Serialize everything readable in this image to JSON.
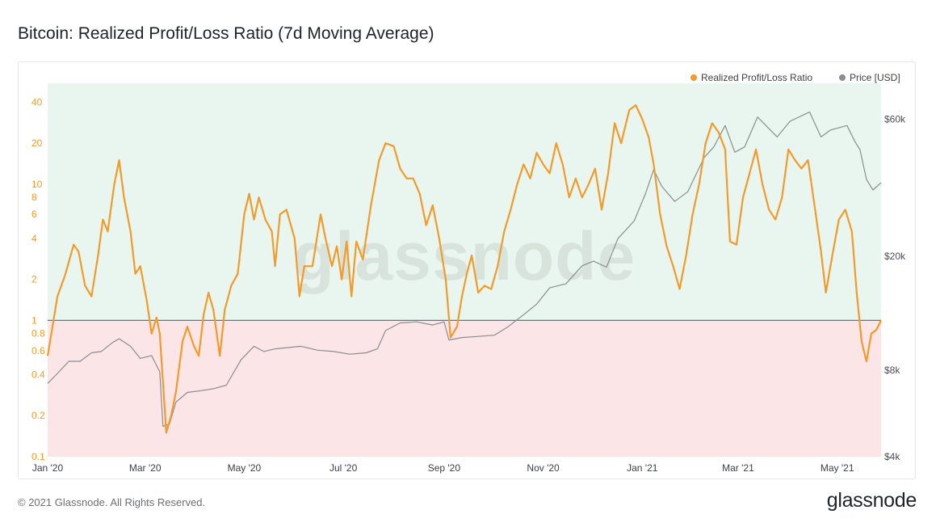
{
  "title": "Bitcoin: Realized Profit/Loss Ratio (7d Moving Average)",
  "footer": "© 2021 Glassnode. All Rights Reserved.",
  "logo": "glassnode",
  "watermark": "glassnode",
  "colors": {
    "ratio": "#f39a2a",
    "price": "#8a8d92",
    "profit_zone": "#e9f6ef",
    "loss_zone": "#fbe5e7",
    "baseline": "#6f7378"
  },
  "chart_data": {
    "type": "line",
    "title": "Bitcoin: Realized Profit/Loss Ratio (7d Moving Average)",
    "x_range": [
      "2020-01-01",
      "2021-05-28"
    ],
    "x_ticks": [
      {
        "date": "2020-01-01",
        "label": "Jan '20"
      },
      {
        "date": "2020-03-01",
        "label": "Mar '20"
      },
      {
        "date": "2020-05-01",
        "label": "May '20"
      },
      {
        "date": "2020-07-01",
        "label": "Jul '20"
      },
      {
        "date": "2020-09-01",
        "label": "Sep '20"
      },
      {
        "date": "2020-11-01",
        "label": "Nov '20"
      },
      {
        "date": "2021-01-01",
        "label": "Jan '21"
      },
      {
        "date": "2021-03-01",
        "label": "Mar '21"
      },
      {
        "date": "2021-05-01",
        "label": "May '21"
      }
    ],
    "y_left": {
      "scale": "log",
      "range": [
        0.1,
        55
      ],
      "ticks": [
        {
          "value": 0.1,
          "label": "0.1"
        },
        {
          "value": 0.2,
          "label": "0.2"
        },
        {
          "value": 0.4,
          "label": "0.4"
        },
        {
          "value": 0.6,
          "label": "0.6"
        },
        {
          "value": 0.8,
          "label": "0.8"
        },
        {
          "value": 1,
          "label": "1"
        },
        {
          "value": 2,
          "label": "2"
        },
        {
          "value": 4,
          "label": "4"
        },
        {
          "value": 6,
          "label": "6"
        },
        {
          "value": 8,
          "label": "8"
        },
        {
          "value": 10,
          "label": "10"
        },
        {
          "value": 20,
          "label": "20"
        },
        {
          "value": 40,
          "label": "40"
        }
      ]
    },
    "y_right": {
      "scale": "log",
      "range": [
        4000,
        80000
      ],
      "ticks": [
        {
          "value": 4000,
          "label": "$4k"
        },
        {
          "value": 8000,
          "label": "$8k"
        },
        {
          "value": 20000,
          "label": "$20k"
        },
        {
          "value": 60000,
          "label": "$60k"
        }
      ]
    },
    "threshold": 1,
    "legend_position": "top-right",
    "grid": false,
    "series": [
      {
        "name": "Realized Profit/Loss Ratio",
        "axis": "left",
        "points": [
          [
            "2020-01-01",
            0.55
          ],
          [
            "2020-01-04",
            0.9
          ],
          [
            "2020-01-07",
            1.5
          ],
          [
            "2020-01-12",
            2.2
          ],
          [
            "2020-01-17",
            3.6
          ],
          [
            "2020-01-20",
            3.2
          ],
          [
            "2020-01-24",
            1.8
          ],
          [
            "2020-01-28",
            1.5
          ],
          [
            "2020-02-01",
            3.0
          ],
          [
            "2020-02-04",
            5.5
          ],
          [
            "2020-02-07",
            4.5
          ],
          [
            "2020-02-11",
            10.0
          ],
          [
            "2020-02-14",
            15.0
          ],
          [
            "2020-02-17",
            8.0
          ],
          [
            "2020-02-21",
            4.5
          ],
          [
            "2020-02-24",
            2.2
          ],
          [
            "2020-02-27",
            2.5
          ],
          [
            "2020-03-02",
            1.4
          ],
          [
            "2020-03-05",
            0.8
          ],
          [
            "2020-03-08",
            1.05
          ],
          [
            "2020-03-10",
            0.8
          ],
          [
            "2020-03-12",
            0.35
          ],
          [
            "2020-03-14",
            0.15
          ],
          [
            "2020-03-17",
            0.2
          ],
          [
            "2020-03-20",
            0.3
          ],
          [
            "2020-03-24",
            0.7
          ],
          [
            "2020-03-27",
            0.9
          ],
          [
            "2020-03-31",
            0.65
          ],
          [
            "2020-04-03",
            0.55
          ],
          [
            "2020-04-06",
            1.1
          ],
          [
            "2020-04-09",
            1.6
          ],
          [
            "2020-04-12",
            1.2
          ],
          [
            "2020-04-16",
            0.55
          ],
          [
            "2020-04-19",
            1.2
          ],
          [
            "2020-04-23",
            1.8
          ],
          [
            "2020-04-27",
            2.2
          ],
          [
            "2020-05-01",
            6.0
          ],
          [
            "2020-05-04",
            8.5
          ],
          [
            "2020-05-07",
            5.5
          ],
          [
            "2020-05-10",
            8.0
          ],
          [
            "2020-05-14",
            5.5
          ],
          [
            "2020-05-18",
            4.5
          ],
          [
            "2020-05-20",
            2.5
          ],
          [
            "2020-05-23",
            6.0
          ],
          [
            "2020-05-27",
            6.5
          ],
          [
            "2020-06-01",
            4.0
          ],
          [
            "2020-06-04",
            1.5
          ],
          [
            "2020-06-07",
            2.5
          ],
          [
            "2020-06-12",
            2.5
          ],
          [
            "2020-06-17",
            6.0
          ],
          [
            "2020-06-20",
            4.0
          ],
          [
            "2020-06-24",
            2.5
          ],
          [
            "2020-06-27",
            3.5
          ],
          [
            "2020-06-30",
            2.0
          ],
          [
            "2020-07-03",
            3.8
          ],
          [
            "2020-07-06",
            1.5
          ],
          [
            "2020-07-09",
            3.8
          ],
          [
            "2020-07-13",
            2.8
          ],
          [
            "2020-07-18",
            7.0
          ],
          [
            "2020-07-23",
            15.0
          ],
          [
            "2020-07-27",
            20.0
          ],
          [
            "2020-08-01",
            19.0
          ],
          [
            "2020-08-05",
            13.0
          ],
          [
            "2020-08-09",
            11.0
          ],
          [
            "2020-08-13",
            11.0
          ],
          [
            "2020-08-17",
            8.5
          ],
          [
            "2020-08-21",
            5.0
          ],
          [
            "2020-08-25",
            7.0
          ],
          [
            "2020-08-29",
            4.0
          ],
          [
            "2020-09-02",
            2.0
          ],
          [
            "2020-09-05",
            0.75
          ],
          [
            "2020-09-09",
            0.9
          ],
          [
            "2020-09-12",
            1.5
          ],
          [
            "2020-09-15",
            2.2
          ],
          [
            "2020-09-18",
            3.0
          ],
          [
            "2020-09-22",
            1.6
          ],
          [
            "2020-09-26",
            1.8
          ],
          [
            "2020-09-30",
            1.7
          ],
          [
            "2020-10-04",
            2.5
          ],
          [
            "2020-10-08",
            4.5
          ],
          [
            "2020-10-12",
            6.5
          ],
          [
            "2020-10-16",
            10.0
          ],
          [
            "2020-10-20",
            14.0
          ],
          [
            "2020-10-24",
            11.0
          ],
          [
            "2020-10-28",
            17.0
          ],
          [
            "2020-11-01",
            14.0
          ],
          [
            "2020-11-05",
            12.0
          ],
          [
            "2020-11-09",
            20.0
          ],
          [
            "2020-11-13",
            14.0
          ],
          [
            "2020-11-17",
            8.0
          ],
          [
            "2020-11-21",
            11.0
          ],
          [
            "2020-11-25",
            8.0
          ],
          [
            "2020-11-29",
            10.0
          ],
          [
            "2020-12-03",
            13.0
          ],
          [
            "2020-12-07",
            6.5
          ],
          [
            "2020-12-11",
            12.0
          ],
          [
            "2020-12-15",
            28.0
          ],
          [
            "2020-12-19",
            20.0
          ],
          [
            "2020-12-24",
            35.0
          ],
          [
            "2020-12-28",
            38.0
          ],
          [
            "2021-01-01",
            30.0
          ],
          [
            "2021-01-05",
            22.0
          ],
          [
            "2021-01-08",
            14.0
          ],
          [
            "2021-01-12",
            6.0
          ],
          [
            "2021-01-16",
            3.5
          ],
          [
            "2021-01-20",
            2.5
          ],
          [
            "2021-01-24",
            1.7
          ],
          [
            "2021-01-28",
            3.0
          ],
          [
            "2021-02-01",
            6.0
          ],
          [
            "2021-02-05",
            10.0
          ],
          [
            "2021-02-09",
            20.0
          ],
          [
            "2021-02-13",
            28.0
          ],
          [
            "2021-02-17",
            24.0
          ],
          [
            "2021-02-21",
            18.0
          ],
          [
            "2021-02-24",
            3.8
          ],
          [
            "2021-02-28",
            3.6
          ],
          [
            "2021-03-04",
            8.0
          ],
          [
            "2021-03-08",
            12.0
          ],
          [
            "2021-03-12",
            18.0
          ],
          [
            "2021-03-16",
            10.0
          ],
          [
            "2021-03-20",
            6.5
          ],
          [
            "2021-03-24",
            5.5
          ],
          [
            "2021-03-28",
            8.0
          ],
          [
            "2021-04-01",
            18.0
          ],
          [
            "2021-04-05",
            15.0
          ],
          [
            "2021-04-09",
            13.0
          ],
          [
            "2021-04-13",
            15.0
          ],
          [
            "2021-04-17",
            7.0
          ],
          [
            "2021-04-21",
            3.2
          ],
          [
            "2021-04-24",
            1.6
          ],
          [
            "2021-04-28",
            3.0
          ],
          [
            "2021-05-02",
            5.5
          ],
          [
            "2021-05-06",
            6.5
          ],
          [
            "2021-05-10",
            4.5
          ],
          [
            "2021-05-13",
            1.6
          ],
          [
            "2021-05-16",
            0.7
          ],
          [
            "2021-05-19",
            0.5
          ],
          [
            "2021-05-22",
            0.8
          ],
          [
            "2021-05-25",
            0.85
          ],
          [
            "2021-05-28",
            1.0
          ]
        ]
      },
      {
        "name": "Price [USD]",
        "axis": "right",
        "points": [
          [
            "2020-01-01",
            7200
          ],
          [
            "2020-01-07",
            7800
          ],
          [
            "2020-01-14",
            8600
          ],
          [
            "2020-01-21",
            8600
          ],
          [
            "2020-01-28",
            9200
          ],
          [
            "2020-02-03",
            9300
          ],
          [
            "2020-02-10",
            10000
          ],
          [
            "2020-02-14",
            10300
          ],
          [
            "2020-02-21",
            9700
          ],
          [
            "2020-02-27",
            8800
          ],
          [
            "2020-03-05",
            9000
          ],
          [
            "2020-03-10",
            7900
          ],
          [
            "2020-03-12",
            5100
          ],
          [
            "2020-03-16",
            5200
          ],
          [
            "2020-03-20",
            6200
          ],
          [
            "2020-03-27",
            6700
          ],
          [
            "2020-04-05",
            6800
          ],
          [
            "2020-04-12",
            6900
          ],
          [
            "2020-04-20",
            7100
          ],
          [
            "2020-04-29",
            8700
          ],
          [
            "2020-05-07",
            9700
          ],
          [
            "2020-05-13",
            9300
          ],
          [
            "2020-05-20",
            9500
          ],
          [
            "2020-05-28",
            9600
          ],
          [
            "2020-06-05",
            9700
          ],
          [
            "2020-06-15",
            9400
          ],
          [
            "2020-06-25",
            9300
          ],
          [
            "2020-07-05",
            9100
          ],
          [
            "2020-07-15",
            9200
          ],
          [
            "2020-07-22",
            9500
          ],
          [
            "2020-07-27",
            11000
          ],
          [
            "2020-08-05",
            11700
          ],
          [
            "2020-08-15",
            11800
          ],
          [
            "2020-08-25",
            11500
          ],
          [
            "2020-09-01",
            11800
          ],
          [
            "2020-09-04",
            10200
          ],
          [
            "2020-09-12",
            10400
          ],
          [
            "2020-09-22",
            10500
          ],
          [
            "2020-10-02",
            10600
          ],
          [
            "2020-10-10",
            11300
          ],
          [
            "2020-10-20",
            12500
          ],
          [
            "2020-10-28",
            13600
          ],
          [
            "2020-11-05",
            15500
          ],
          [
            "2020-11-15",
            16000
          ],
          [
            "2020-11-25",
            18500
          ],
          [
            "2020-12-02",
            19200
          ],
          [
            "2020-12-10",
            18300
          ],
          [
            "2020-12-17",
            23000
          ],
          [
            "2020-12-27",
            26500
          ],
          [
            "2021-01-03",
            33000
          ],
          [
            "2021-01-08",
            40000
          ],
          [
            "2021-01-13",
            35000
          ],
          [
            "2021-01-21",
            31000
          ],
          [
            "2021-01-29",
            33500
          ],
          [
            "2021-02-08",
            44000
          ],
          [
            "2021-02-14",
            48000
          ],
          [
            "2021-02-21",
            57000
          ],
          [
            "2021-02-27",
            46000
          ],
          [
            "2021-03-05",
            48000
          ],
          [
            "2021-03-13",
            61000
          ],
          [
            "2021-03-25",
            52000
          ],
          [
            "2021-04-02",
            59000
          ],
          [
            "2021-04-14",
            63500
          ],
          [
            "2021-04-21",
            52000
          ],
          [
            "2021-04-27",
            55000
          ],
          [
            "2021-05-07",
            57000
          ],
          [
            "2021-05-12",
            50000
          ],
          [
            "2021-05-15",
            47000
          ],
          [
            "2021-05-19",
            37000
          ],
          [
            "2021-05-23",
            34000
          ],
          [
            "2021-05-28",
            36000
          ]
        ]
      }
    ]
  }
}
